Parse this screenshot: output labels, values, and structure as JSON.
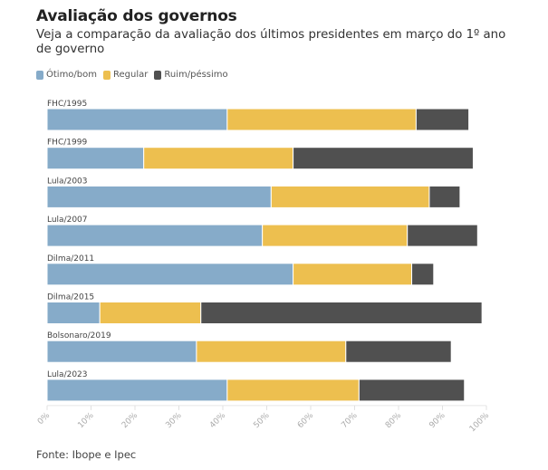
{
  "chart_data": {
    "type": "bar",
    "orientation": "horizontal",
    "stacked": true,
    "title": "Avaliação dos governos",
    "subtitle": "Veja a comparação da avaliação dos últimos presidentes em março do 1º ano de governo",
    "categories": [
      "FHC/1995",
      "FHC/1999",
      "Lula/2003",
      "Lula/2007",
      "Dilma/2011",
      "Dilma/2015",
      "Bolsonaro/2019",
      "Lula/2023"
    ],
    "series": [
      {
        "name": "Ótimo/bom",
        "color": "#86abc9",
        "values": [
          41,
          22,
          51,
          49,
          56,
          12,
          34,
          41
        ]
      },
      {
        "name": "Regular",
        "color": "#edbf4f",
        "values": [
          43,
          34,
          36,
          33,
          27,
          23,
          34,
          30
        ]
      },
      {
        "name": "Ruim/péssimo",
        "color": "#505050",
        "values": [
          12,
          41,
          7,
          16,
          5,
          64,
          24,
          24
        ]
      }
    ],
    "xlim": [
      0,
      100
    ],
    "xticks": [
      "0%",
      "10%",
      "20%",
      "30%",
      "40%",
      "50%",
      "60%",
      "70%",
      "80%",
      "90%",
      "100%"
    ],
    "xlabel": "",
    "ylabel": "",
    "legend": "top-left",
    "grid": false
  },
  "source": "Fonte: Ibope e Ipec"
}
